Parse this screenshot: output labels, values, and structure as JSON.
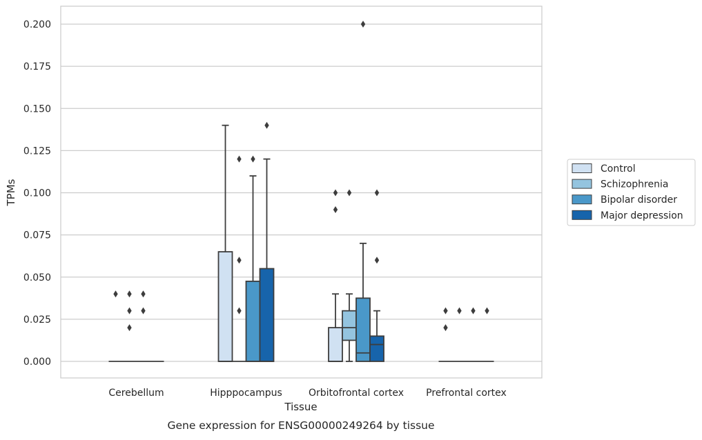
{
  "chart_data": {
    "type": "boxplot",
    "title": "",
    "caption": "Gene expression for ENSG00000249264 by tissue",
    "xlabel": "Tissue",
    "ylabel": "TPMs",
    "ylim": [
      -0.01,
      0.21
    ],
    "yticks": [
      0.0,
      0.025,
      0.05,
      0.075,
      0.1,
      0.125,
      0.15,
      0.175,
      0.2
    ],
    "ytick_labels": [
      "0.000",
      "0.025",
      "0.050",
      "0.075",
      "0.100",
      "0.125",
      "0.150",
      "0.175",
      "0.200"
    ],
    "grid": "horizontal",
    "legend_position": "right",
    "categories": [
      "Cerebellum",
      "Hipppocampus",
      "Orbitofrontal cortex",
      "Prefrontal cortex"
    ],
    "series": [
      {
        "name": "Control",
        "color": "#d0e1f2",
        "boxes": [
          {
            "q1": 0.0,
            "median": 0.0,
            "q3": 0.0,
            "whisker_low": 0.0,
            "whisker_high": 0.0,
            "fliers": [
              0.04
            ]
          },
          {
            "q1": 0.0,
            "median": 0.0,
            "q3": 0.065,
            "whisker_low": 0.0,
            "whisker_high": 0.14,
            "fliers": []
          },
          {
            "q1": 0.0,
            "median": 0.0,
            "q3": 0.02,
            "whisker_low": 0.0,
            "whisker_high": 0.04,
            "fliers": [
              0.09,
              0.1
            ]
          },
          {
            "q1": 0.0,
            "median": 0.0,
            "q3": 0.0,
            "whisker_low": 0.0,
            "whisker_high": 0.0,
            "fliers": [
              0.02,
              0.03
            ]
          }
        ]
      },
      {
        "name": "Schizophrenia",
        "color": "#94c4df",
        "boxes": [
          {
            "q1": 0.0,
            "median": 0.0,
            "q3": 0.0,
            "whisker_low": 0.0,
            "whisker_high": 0.0,
            "fliers": [
              0.02,
              0.03,
              0.04
            ]
          },
          {
            "q1": 0.0,
            "median": 0.0,
            "q3": 0.0,
            "whisker_low": 0.0,
            "whisker_high": 0.0,
            "fliers": [
              0.03,
              0.06,
              0.12
            ]
          },
          {
            "q1": 0.0125,
            "median": 0.02,
            "q3": 0.03,
            "whisker_low": 0.0,
            "whisker_high": 0.04,
            "fliers": [
              0.1
            ]
          },
          {
            "q1": 0.0,
            "median": 0.0,
            "q3": 0.0,
            "whisker_low": 0.0,
            "whisker_high": 0.0,
            "fliers": [
              0.03
            ]
          }
        ]
      },
      {
        "name": "Bipolar disorder",
        "color": "#4a98c9",
        "boxes": [
          {
            "q1": 0.0,
            "median": 0.0,
            "q3": 0.0,
            "whisker_low": 0.0,
            "whisker_high": 0.0,
            "fliers": [
              0.03,
              0.04
            ]
          },
          {
            "q1": 0.0,
            "median": 0.0,
            "q3": 0.0475,
            "whisker_low": 0.0,
            "whisker_high": 0.11,
            "fliers": [
              0.12
            ]
          },
          {
            "q1": 0.0,
            "median": 0.005,
            "q3": 0.0375,
            "whisker_low": 0.0,
            "whisker_high": 0.07,
            "fliers": [
              0.2
            ]
          },
          {
            "q1": 0.0,
            "median": 0.0,
            "q3": 0.0,
            "whisker_low": 0.0,
            "whisker_high": 0.0,
            "fliers": [
              0.03
            ]
          }
        ]
      },
      {
        "name": "Major depression",
        "color": "#1764ab",
        "boxes": [
          {
            "q1": 0.0,
            "median": 0.0,
            "q3": 0.0,
            "whisker_low": 0.0,
            "whisker_high": 0.0,
            "fliers": []
          },
          {
            "q1": 0.0,
            "median": 0.0,
            "q3": 0.055,
            "whisker_low": 0.0,
            "whisker_high": 0.12,
            "fliers": [
              0.14
            ]
          },
          {
            "q1": 0.0,
            "median": 0.01,
            "q3": 0.015,
            "whisker_low": 0.0,
            "whisker_high": 0.03,
            "fliers": [
              0.06,
              0.1
            ]
          },
          {
            "q1": 0.0,
            "median": 0.0,
            "q3": 0.0,
            "whisker_low": 0.0,
            "whisker_high": 0.0,
            "fliers": [
              0.03
            ]
          }
        ]
      }
    ]
  }
}
